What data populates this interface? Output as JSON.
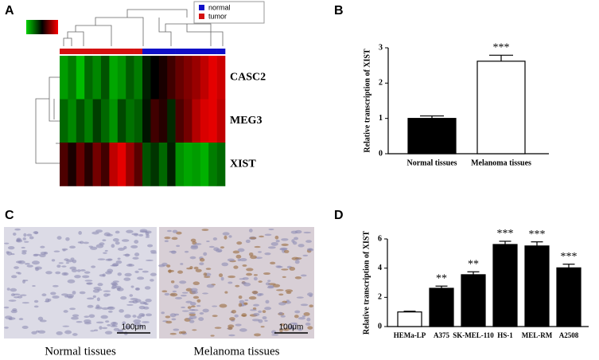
{
  "panel_labels": [
    "A",
    "B",
    "C",
    "D"
  ],
  "heatmap": {
    "legend": [
      {
        "name": "normal",
        "color": "#1010c8"
      },
      {
        "name": "tumor",
        "color": "#d41010"
      }
    ],
    "column_groups": [
      1,
      1,
      1,
      1,
      1,
      1,
      1,
      1,
      1,
      1,
      0,
      0,
      0,
      0,
      0,
      0,
      0,
      0,
      0,
      0
    ],
    "rows": [
      "CASC2",
      "MEG3",
      "XIST"
    ],
    "zlim": [
      -2,
      2
    ],
    "color_low": "#00d000",
    "color_mid": "#000000",
    "color_high": "#ff0000",
    "values": [
      [
        -1.5,
        -1.2,
        -1.8,
        -1.0,
        -1.3,
        -0.8,
        -1.6,
        -1.4,
        -0.9,
        -1.2,
        -0.3,
        0,
        0.2,
        0.5,
        0.8,
        1.0,
        1.2,
        1.5,
        1.8,
        1.6
      ],
      [
        -1.0,
        -1.3,
        -0.8,
        -1.2,
        -0.6,
        -1.0,
        -1.4,
        -0.7,
        -1.1,
        -0.9,
        -0.2,
        0.5,
        0.3,
        -0.4,
        0.6,
        0.9,
        1.4,
        1.7,
        1.8,
        1.5
      ],
      [
        0.6,
        0.2,
        0.8,
        0.3,
        0.9,
        0.5,
        1.5,
        1.8,
        1.2,
        0.7,
        -0.8,
        -0.5,
        -1.0,
        -0.3,
        -1.4,
        -1.6,
        -1.5,
        -1.7,
        -1.2,
        -1.0
      ]
    ]
  },
  "micrographs": {
    "scale_bars": [
      "100μm",
      "100μm"
    ],
    "captions": [
      "Normal tissues",
      "Melanoma tissues"
    ]
  },
  "chart_data": [
    {
      "type": "bar",
      "y_label": "Relative transcription of XIST",
      "categories": [
        "Normal tissues",
        "Melanoma tissues"
      ],
      "values": [
        1.0,
        2.62
      ],
      "errors": [
        0.07,
        0.17
      ],
      "colors": [
        "#000000",
        "#ffffff"
      ],
      "annotations": [
        null,
        "***"
      ],
      "ylim": [
        0,
        3
      ],
      "yticks": [
        0,
        1,
        2,
        3
      ]
    },
    {
      "type": "bar",
      "y_label": "Relative transcription of XIST",
      "categories": [
        "HEMa-LP",
        "A375",
        "SK-MEL-110",
        "HS-1",
        "MEL-RM",
        "A2508"
      ],
      "values": [
        1.0,
        2.62,
        3.55,
        5.62,
        5.52,
        4.02
      ],
      "errors": [
        0.05,
        0.15,
        0.2,
        0.22,
        0.28,
        0.25
      ],
      "colors": [
        "#ffffff",
        "#000000",
        "#000000",
        "#000000",
        "#000000",
        "#000000"
      ],
      "annotations": [
        null,
        "**",
        "**",
        "***",
        "***",
        "***"
      ],
      "ylim": [
        0,
        6
      ],
      "yticks": [
        0,
        2,
        4,
        6
      ]
    }
  ]
}
